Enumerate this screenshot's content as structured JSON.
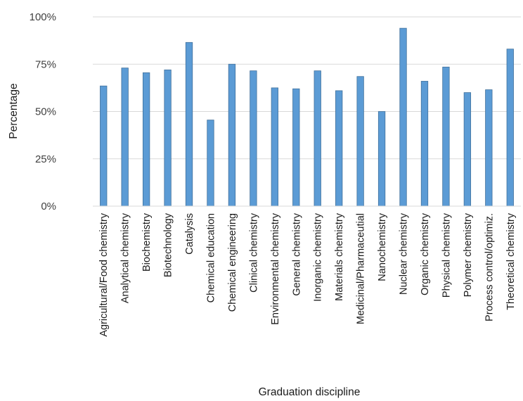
{
  "chart_data": {
    "type": "bar",
    "title": "",
    "xlabel": "Graduation discipline",
    "ylabel": "Percentage",
    "ylim": [
      0,
      100
    ],
    "yticks": [
      0,
      25,
      50,
      75,
      100
    ],
    "ytick_labels": [
      "0%",
      "25%",
      "50%",
      "75%",
      "100%"
    ],
    "grid": true,
    "legend": "none",
    "bar_color": "#5b9bd5",
    "categories": [
      "Agricultural/Food chemistry",
      "Analytical chemistry",
      "Biochemistry",
      "Biotechnology",
      "Catalysis",
      "Chemical education",
      "Chemical engineering",
      "Clinical chemistry",
      "Environmental chemistry",
      "General chemistry",
      "Inorganic chemistry",
      "Materials chemistry",
      "Medicinal/Pharmaceutial",
      "Nanochemistry",
      "Nuclear chemistry",
      "Organic chemistry",
      "Physical chemistry",
      "Polymer chemistry",
      "Process control/optimiz.",
      "Theoretical chemistry"
    ],
    "values": [
      63.5,
      73,
      70.5,
      72,
      86.5,
      45.5,
      75,
      71.5,
      62.5,
      62,
      71.5,
      61,
      68.5,
      50,
      94,
      66,
      73.5,
      60,
      61.5,
      83
    ]
  }
}
